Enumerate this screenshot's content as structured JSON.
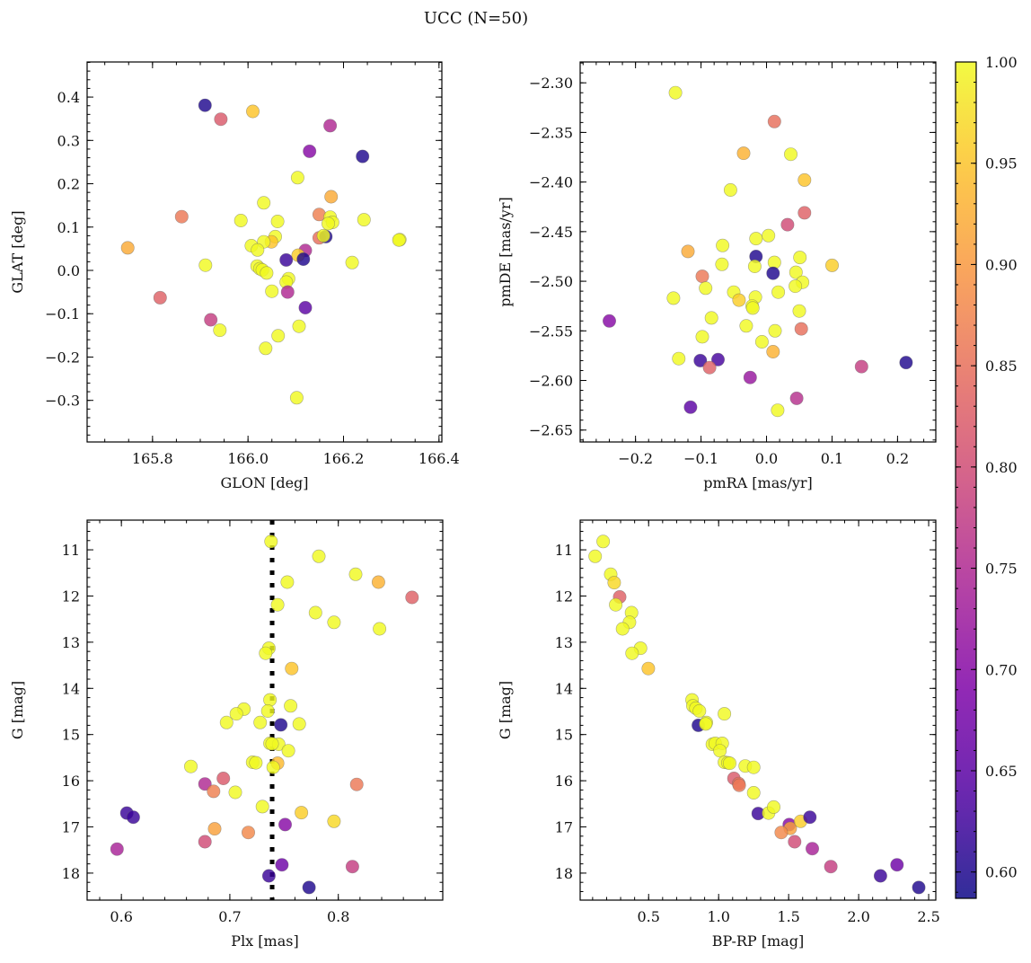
{
  "chart_data": {
    "title": "UCC (N=50)",
    "colorbar": {
      "cmap": "plasma",
      "range": [
        0.587,
        1.0
      ],
      "ticks": [
        "0.60",
        "0.65",
        "0.70",
        "0.75",
        "0.80",
        "0.85",
        "0.90",
        "0.95",
        "1.00"
      ]
    },
    "panels": [
      {
        "type": "scatter",
        "xlabel": "GLON [deg]",
        "ylabel": "GLAT [deg]",
        "xlim": [
          165.663,
          166.406
        ],
        "ylim": [
          -0.396,
          0.481
        ],
        "xticks": [
          "165.8",
          "166.0",
          "166.2",
          "166.4"
        ],
        "yticks": [
          "-0.3",
          "-0.2",
          "-0.1",
          "0.0",
          "0.1",
          "0.2",
          "0.3",
          "0.4"
        ],
        "points": [
          [
            165.91,
            0.381,
            0.6
          ],
          [
            165.943,
            0.349,
            0.82
          ],
          [
            166.01,
            0.367,
            0.95
          ],
          [
            166.172,
            0.334,
            0.75
          ],
          [
            166.129,
            0.275,
            0.7
          ],
          [
            166.24,
            0.263,
            0.6
          ],
          [
            166.104,
            0.214,
            1
          ],
          [
            166.174,
            0.17,
            0.92
          ],
          [
            166.033,
            0.156,
            1
          ],
          [
            165.861,
            0.124,
            0.86
          ],
          [
            165.985,
            0.115,
            1
          ],
          [
            166.062,
            0.113,
            1
          ],
          [
            166.149,
            0.129,
            0.87
          ],
          [
            166.172,
            0.123,
            1
          ],
          [
            166.177,
            0.111,
            1
          ],
          [
            166.168,
            0.108,
            1
          ],
          [
            166.243,
            0.117,
            1
          ],
          [
            165.748,
            0.052,
            0.92
          ],
          [
            166.318,
            0.071,
            1
          ],
          [
            166.316,
            0.07,
            1
          ],
          [
            166.057,
            0.078,
            1
          ],
          [
            166.049,
            0.066,
            0.95
          ],
          [
            166.033,
            0.066,
            1
          ],
          [
            166.007,
            0.057,
            1
          ],
          [
            166.02,
            0.047,
            1
          ],
          [
            166.149,
            0.075,
            0.85
          ],
          [
            166.163,
            0.078,
            0.6
          ],
          [
            166.158,
            0.08,
            1
          ],
          [
            166.12,
            0.046,
            0.75
          ],
          [
            166.105,
            0.035,
            0.96
          ],
          [
            166.08,
            0.024,
            0.62
          ],
          [
            166.116,
            0.026,
            0.6
          ],
          [
            165.911,
            0.012,
            1
          ],
          [
            166.019,
            0.01,
            1
          ],
          [
            166.025,
            0.004,
            1
          ],
          [
            166.03,
            0.001,
            1
          ],
          [
            166.039,
            -0.006,
            1
          ],
          [
            166.218,
            0.018,
            1
          ],
          [
            166.085,
            -0.019,
            1
          ],
          [
            166.08,
            -0.027,
            1
          ],
          [
            166.05,
            -0.048,
            1
          ],
          [
            166.083,
            -0.05,
            0.75
          ],
          [
            165.816,
            -0.063,
            0.83
          ],
          [
            166.12,
            -0.086,
            0.65
          ],
          [
            165.922,
            -0.114,
            0.78
          ],
          [
            165.941,
            -0.138,
            1
          ],
          [
            166.107,
            -0.129,
            1
          ],
          [
            166.063,
            -0.151,
            1
          ],
          [
            166.037,
            -0.18,
            1
          ],
          [
            166.102,
            -0.294,
            1
          ]
        ]
      },
      {
        "type": "scatter",
        "xlabel": "pmRA [mas/yr]",
        "ylabel": "pmDE [mas/yr]",
        "xlim": [
          -0.2845,
          0.2584
        ],
        "ylim": [
          -2.662,
          -2.279
        ],
        "xticks": [
          "-0.2",
          "-0.1",
          "0.0",
          "0.1",
          "0.2"
        ],
        "yticks": [
          "-2.65",
          "-2.60",
          "-2.55",
          "-2.50",
          "-2.45",
          "-2.40",
          "-2.35",
          "-2.30"
        ],
        "points": [
          [
            -0.139,
            -2.31,
            1
          ],
          [
            0.012,
            -2.339,
            0.85
          ],
          [
            -0.035,
            -2.371,
            0.93
          ],
          [
            0.037,
            -2.372,
            1
          ],
          [
            0.058,
            -2.398,
            0.95
          ],
          [
            -0.055,
            -2.408,
            1
          ],
          [
            0.058,
            -2.431,
            0.83
          ],
          [
            0.032,
            -2.443,
            0.8
          ],
          [
            -0.016,
            -2.457,
            1
          ],
          [
            0.003,
            -2.454,
            1
          ],
          [
            -0.12,
            -2.47,
            0.92
          ],
          [
            -0.067,
            -2.464,
            1
          ],
          [
            -0.016,
            -2.475,
            0.6
          ],
          [
            -0.068,
            -2.483,
            1
          ],
          [
            -0.018,
            -2.485,
            1
          ],
          [
            0.012,
            -2.481,
            1
          ],
          [
            0.051,
            -2.476,
            1
          ],
          [
            0.1,
            -2.484,
            0.96
          ],
          [
            0.01,
            -2.492,
            0.6
          ],
          [
            0.045,
            -2.491,
            1
          ],
          [
            -0.098,
            -2.495,
            0.86
          ],
          [
            0.055,
            -2.501,
            1
          ],
          [
            0.044,
            -2.505,
            1
          ],
          [
            -0.093,
            -2.507,
            1
          ],
          [
            0.018,
            -2.511,
            1
          ],
          [
            -0.05,
            -2.511,
            1
          ],
          [
            -0.142,
            -2.517,
            1
          ],
          [
            -0.042,
            -2.519,
            0.96
          ],
          [
            -0.017,
            -2.516,
            1
          ],
          [
            -0.022,
            -2.525,
            1
          ],
          [
            -0.021,
            -2.527,
            1
          ],
          [
            0.05,
            -2.53,
            1
          ],
          [
            -0.084,
            -2.537,
            1
          ],
          [
            -0.24,
            -2.54,
            0.7
          ],
          [
            -0.031,
            -2.545,
            1
          ],
          [
            0.013,
            -2.55,
            1
          ],
          [
            0.053,
            -2.548,
            0.85
          ],
          [
            -0.098,
            -2.556,
            1
          ],
          [
            -0.007,
            -2.561,
            1
          ],
          [
            0.01,
            -2.571,
            0.93
          ],
          [
            -0.134,
            -2.578,
            1
          ],
          [
            -0.101,
            -2.58,
            0.62
          ],
          [
            -0.074,
            -2.579,
            0.63
          ],
          [
            -0.087,
            -2.587,
            0.83
          ],
          [
            0.145,
            -2.586,
            0.78
          ],
          [
            0.213,
            -2.582,
            0.6
          ],
          [
            -0.025,
            -2.597,
            0.72
          ],
          [
            0.046,
            -2.618,
            0.76
          ],
          [
            -0.116,
            -2.627,
            0.65
          ],
          [
            0.017,
            -2.63,
            1
          ]
        ]
      },
      {
        "type": "scatter",
        "xlabel": "Plx [mas]",
        "ylabel": "G [mag]",
        "xlim": [
          0.5684,
          0.8963
        ],
        "ylim": [
          18.585,
          10.357
        ],
        "y_inverted": true,
        "xticks": [
          "0.6",
          "0.7",
          "0.8"
        ],
        "yticks": [
          "11",
          "12",
          "13",
          "14",
          "15",
          "16",
          "17",
          "18"
        ],
        "vline": 0.739,
        "points": [
          [
            0.738,
            10.82,
            1
          ],
          [
            0.782,
            11.14,
            1
          ],
          [
            0.816,
            11.53,
            1
          ],
          [
            0.753,
            11.7,
            1
          ],
          [
            0.837,
            11.7,
            0.93
          ],
          [
            0.868,
            12.03,
            0.83
          ],
          [
            0.744,
            12.19,
            1
          ],
          [
            0.779,
            12.36,
            1
          ],
          [
            0.796,
            12.57,
            1
          ],
          [
            0.838,
            12.71,
            1
          ],
          [
            0.736,
            13.13,
            1
          ],
          [
            0.733,
            13.24,
            1
          ],
          [
            0.757,
            13.57,
            0.95
          ],
          [
            0.737,
            14.25,
            1
          ],
          [
            0.756,
            14.38,
            1
          ],
          [
            0.713,
            14.45,
            1
          ],
          [
            0.706,
            14.55,
            1
          ],
          [
            0.735,
            14.49,
            1
          ],
          [
            0.697,
            14.74,
            1
          ],
          [
            0.728,
            14.74,
            1
          ],
          [
            0.747,
            14.79,
            0.6
          ],
          [
            0.764,
            14.77,
            1
          ],
          [
            0.737,
            15.19,
            1
          ],
          [
            0.745,
            15.21,
            1
          ],
          [
            0.754,
            15.35,
            1
          ],
          [
            0.721,
            15.6,
            1
          ],
          [
            0.724,
            15.61,
            1
          ],
          [
            0.744,
            15.62,
            0.94
          ],
          [
            0.74,
            15.71,
            1
          ],
          [
            0.664,
            15.69,
            1
          ],
          [
            0.694,
            15.95,
            0.82
          ],
          [
            0.677,
            16.07,
            0.75
          ],
          [
            0.685,
            16.23,
            0.87
          ],
          [
            0.705,
            16.25,
            1
          ],
          [
            0.817,
            16.08,
            0.86
          ],
          [
            0.73,
            16.56,
            1
          ],
          [
            0.766,
            16.69,
            0.96
          ],
          [
            0.605,
            16.7,
            0.62
          ],
          [
            0.611,
            16.79,
            0.62
          ],
          [
            0.796,
            16.88,
            0.97
          ],
          [
            0.751,
            16.95,
            0.7
          ],
          [
            0.686,
            17.04,
            0.91
          ],
          [
            0.717,
            17.12,
            0.88
          ],
          [
            0.677,
            17.32,
            0.8
          ],
          [
            0.596,
            17.48,
            0.74
          ],
          [
            0.748,
            17.82,
            0.67
          ],
          [
            0.813,
            17.86,
            0.78
          ],
          [
            0.736,
            18.06,
            0.62
          ],
          [
            0.773,
            18.31,
            0.6
          ],
          [
            0.739,
            15.2,
            1
          ]
        ]
      },
      {
        "type": "scatter",
        "xlabel": "BP-RP [mag]",
        "ylabel": "G [mag]",
        "xlim": [
          0.011,
          2.551
        ],
        "ylim": [
          18.585,
          10.357
        ],
        "y_inverted": true,
        "xticks": [
          "0.5",
          "1.0",
          "1.5",
          "2.0",
          "2.5"
        ],
        "yticks": [
          "11",
          "12",
          "13",
          "14",
          "15",
          "16",
          "17",
          "18"
        ],
        "points": [
          [
            0.175,
            10.82,
            1
          ],
          [
            0.118,
            11.14,
            1
          ],
          [
            0.229,
            11.53,
            1
          ],
          [
            0.254,
            11.71,
            0.97
          ],
          [
            0.293,
            12.02,
            0.83
          ],
          [
            0.265,
            12.19,
            1
          ],
          [
            0.378,
            12.36,
            1
          ],
          [
            0.363,
            12.57,
            1
          ],
          [
            0.314,
            12.71,
            1
          ],
          [
            0.442,
            13.13,
            1
          ],
          [
            0.382,
            13.24,
            1
          ],
          [
            0.498,
            13.57,
            0.95
          ],
          [
            0.81,
            14.25,
            1
          ],
          [
            0.816,
            14.38,
            1
          ],
          [
            0.838,
            14.43,
            1
          ],
          [
            0.863,
            14.49,
            1
          ],
          [
            1.041,
            14.55,
            1
          ],
          [
            0.855,
            14.8,
            0.6
          ],
          [
            0.912,
            14.74,
            1
          ],
          [
            0.908,
            14.77,
            1
          ],
          [
            0.955,
            15.21,
            1
          ],
          [
            0.976,
            15.19,
            1
          ],
          [
            1.026,
            15.19,
            1
          ],
          [
            1.009,
            15.35,
            1
          ],
          [
            1.041,
            15.6,
            1
          ],
          [
            1.066,
            15.61,
            1
          ],
          [
            1.079,
            15.62,
            1
          ],
          [
            1.19,
            15.68,
            1
          ],
          [
            1.25,
            15.71,
            1
          ],
          [
            1.109,
            15.95,
            0.82
          ],
          [
            1.143,
            16.06,
            0.85
          ],
          [
            1.147,
            16.1,
            0.86
          ],
          [
            1.25,
            16.26,
            1
          ],
          [
            1.282,
            16.71,
            0.62
          ],
          [
            1.357,
            16.7,
            1
          ],
          [
            1.393,
            16.57,
            1
          ],
          [
            1.504,
            16.95,
            0.7
          ],
          [
            1.511,
            17.03,
            0.91
          ],
          [
            1.447,
            17.12,
            0.88
          ],
          [
            1.585,
            16.88,
            0.96
          ],
          [
            1.652,
            16.79,
            0.62
          ],
          [
            1.543,
            17.32,
            0.8
          ],
          [
            1.669,
            17.47,
            0.74
          ],
          [
            1.801,
            17.86,
            0.78
          ],
          [
            2.156,
            18.06,
            0.62
          ],
          [
            2.274,
            17.82,
            0.67
          ],
          [
            2.429,
            18.31,
            0.6
          ]
        ]
      }
    ]
  }
}
